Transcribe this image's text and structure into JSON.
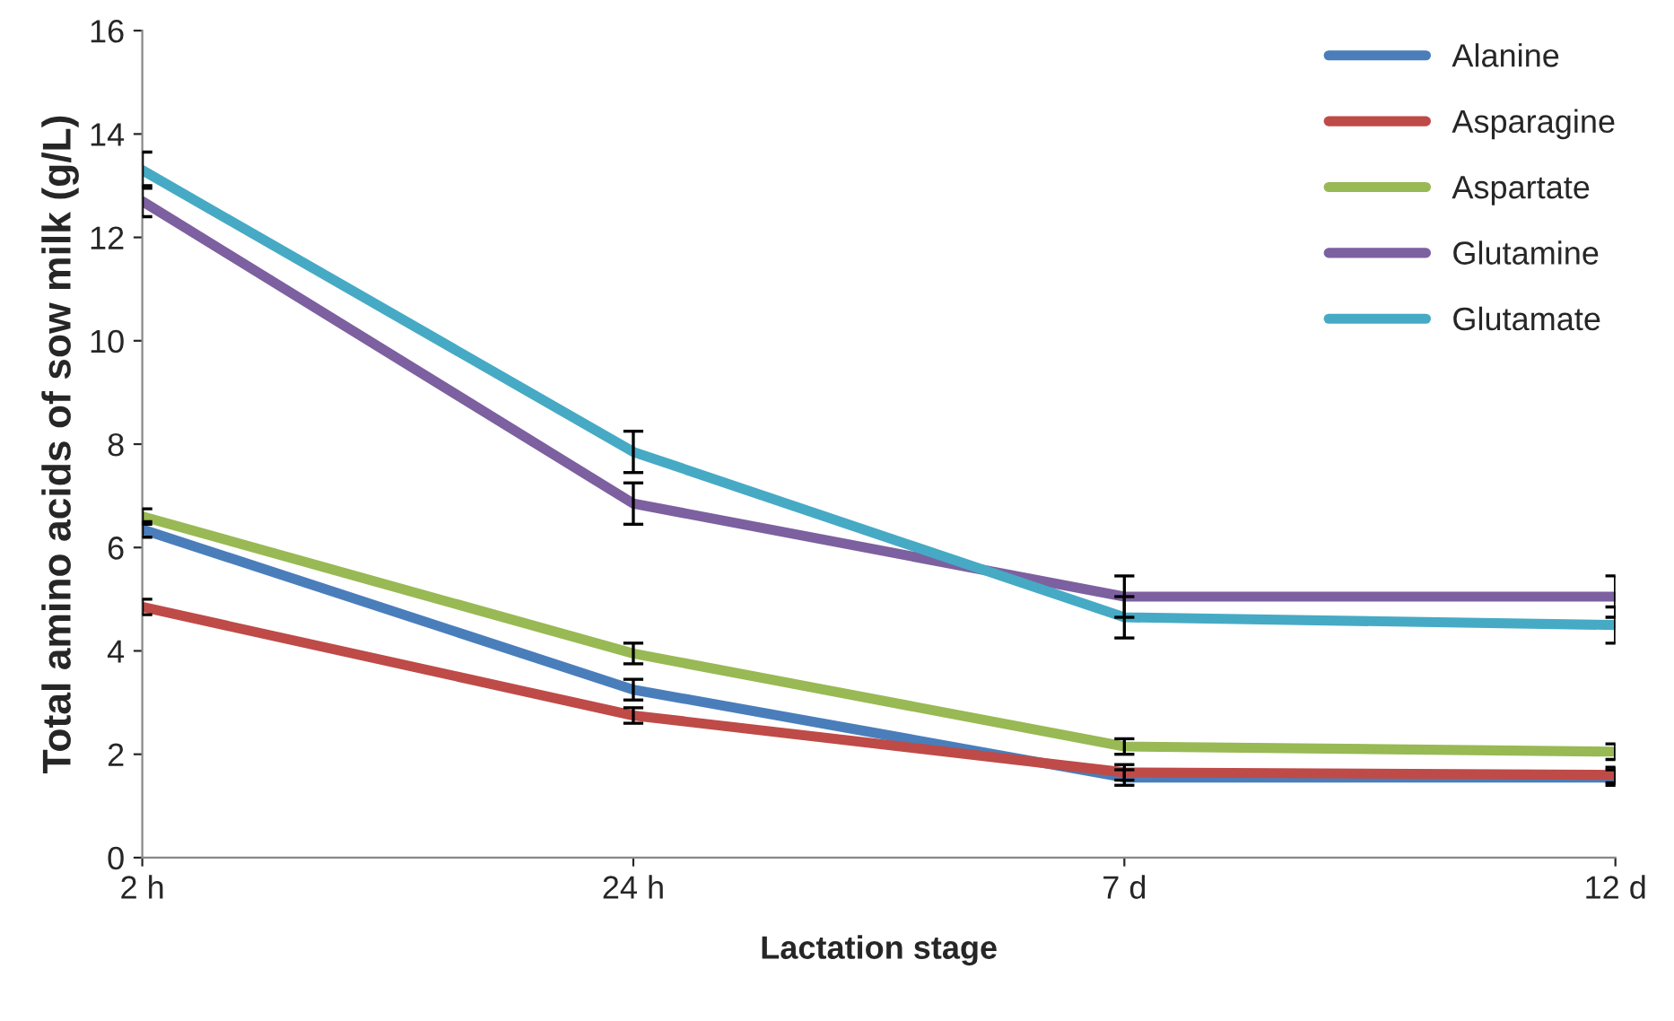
{
  "chart_data": {
    "type": "line",
    "xlabel": "Lactation stage",
    "ylabel": "Total amino acids of sow milk (g/L)",
    "categories": [
      "2 h",
      "24 h",
      "7 d",
      "12 d"
    ],
    "ylim": [
      0,
      16
    ],
    "yticks": [
      0,
      2,
      4,
      6,
      8,
      10,
      12,
      14,
      16
    ],
    "grid": false,
    "legend": "top right",
    "marker": "none",
    "line_style": "solid",
    "series": [
      {
        "name": "Alanine",
        "color": "#4a7ebb",
        "values": [
          6.35,
          3.25,
          1.55,
          1.55
        ],
        "errors": [
          0.15,
          0.2,
          0.15,
          0.15
        ]
      },
      {
        "name": "Asparagine",
        "color": "#be4b48",
        "values": [
          4.85,
          2.75,
          1.65,
          1.6
        ],
        "errors": [
          0.15,
          0.15,
          0.15,
          0.15
        ]
      },
      {
        "name": "Aspartate",
        "color": "#98b954",
        "values": [
          6.6,
          3.95,
          2.15,
          2.05
        ],
        "errors": [
          0.15,
          0.2,
          0.15,
          0.15
        ]
      },
      {
        "name": "Glutamine",
        "color": "#7d60a0",
        "values": [
          12.7,
          6.85,
          5.05,
          5.05
        ],
        "errors": [
          0.3,
          0.4,
          0.4,
          0.4
        ]
      },
      {
        "name": "Glutamate",
        "color": "#46aac5",
        "values": [
          13.3,
          7.85,
          4.65,
          4.5
        ],
        "errors": [
          0.35,
          0.4,
          0.4,
          0.35
        ]
      }
    ]
  }
}
